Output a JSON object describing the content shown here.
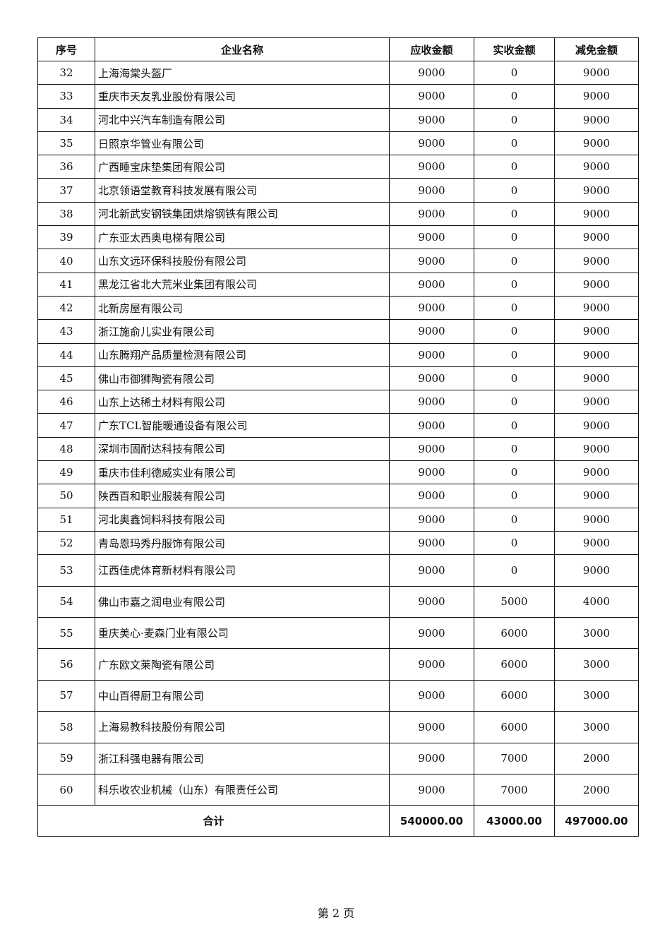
{
  "headers": [
    "序号",
    "企业名称",
    "应收金额",
    "实收金额",
    "减免金额"
  ],
  "rows": [
    [
      "32",
      "上海海棠头盔厂",
      "9000",
      "0",
      "9000"
    ],
    [
      "33",
      "重庆市天友乳业股份有限公司",
      "9000",
      "0",
      "9000"
    ],
    [
      "34",
      "河北中兴汽车制造有限公司",
      "9000",
      "0",
      "9000"
    ],
    [
      "35",
      "日照京华管业有限公司",
      "9000",
      "0",
      "9000"
    ],
    [
      "36",
      "广西睡宝床垫集团有限公司",
      "9000",
      "0",
      "9000"
    ],
    [
      "37",
      "北京领语堂教育科技发展有限公司",
      "9000",
      "0",
      "9000"
    ],
    [
      "38",
      "河北新武安钢铁集团烘熔钢铁有限公司",
      "9000",
      "0",
      "9000"
    ],
    [
      "39",
      "广东亚太西奥电梯有限公司",
      "9000",
      "0",
      "9000"
    ],
    [
      "40",
      "山东文远环保科技股份有限公司",
      "9000",
      "0",
      "9000"
    ],
    [
      "41",
      "黑龙江省北大荒米业集团有限公司",
      "9000",
      "0",
      "9000"
    ],
    [
      "42",
      "北新房屋有限公司",
      "9000",
      "0",
      "9000"
    ],
    [
      "43",
      "浙江施俞儿实业有限公司",
      "9000",
      "0",
      "9000"
    ],
    [
      "44",
      "山东腾翔产品质量检测有限公司",
      "9000",
      "0",
      "9000"
    ],
    [
      "45",
      "佛山市御狮陶瓷有限公司",
      "9000",
      "0",
      "9000"
    ],
    [
      "46",
      "山东上达稀土材料有限公司",
      "9000",
      "0",
      "9000"
    ],
    [
      "47",
      "广东TCL智能暖通设备有限公司",
      "9000",
      "0",
      "9000"
    ],
    [
      "48",
      "深圳市固耐达科技有限公司",
      "9000",
      "0",
      "9000"
    ],
    [
      "49",
      "重庆市佳利德威实业有限公司",
      "9000",
      "0",
      "9000"
    ],
    [
      "50",
      "陕西百和职业服装有限公司",
      "9000",
      "0",
      "9000"
    ],
    [
      "51",
      "河北奥鑫饲料科技有限公司",
      "9000",
      "0",
      "9000"
    ],
    [
      "52",
      "青岛恩玛秀丹服饰有限公司",
      "9000",
      "0",
      "9000"
    ],
    [
      "53",
      "江西佳虎体育新材料有限公司",
      "9000",
      "0",
      "9000"
    ],
    [
      "54",
      "佛山市嘉之润电业有限公司",
      "9000",
      "5000",
      "4000"
    ],
    [
      "55",
      "重庆美心·麦森门业有限公司",
      "9000",
      "6000",
      "3000"
    ],
    [
      "56",
      "广东欧文莱陶瓷有限公司",
      "9000",
      "6000",
      "3000"
    ],
    [
      "57",
      "中山百得厨卫有限公司",
      "9000",
      "6000",
      "3000"
    ],
    [
      "58",
      "上海易教科技股份有限公司",
      "9000",
      "6000",
      "3000"
    ],
    [
      "59",
      "浙江科强电器有限公司",
      "9000",
      "7000",
      "2000"
    ],
    [
      "60",
      "科乐收农业机械（山东）有限责任公司",
      "9000",
      "7000",
      "2000"
    ]
  ],
  "total": {
    "label": "合计",
    "receivable": "540000.00",
    "received": "43000.00",
    "waived": "497000.00"
  },
  "page_label": "第 2 页"
}
